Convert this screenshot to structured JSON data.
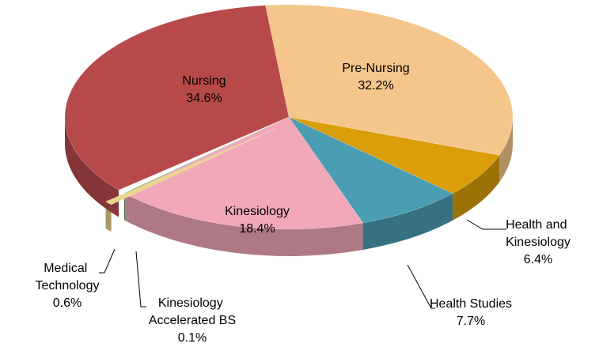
{
  "chart_data": {
    "type": "pie",
    "categories": [
      "Pre-Nursing",
      "Health and Kinesiology",
      "Health Studies",
      "Kinesiology",
      "Kinesiology Accelerated BS",
      "Medical Technology",
      "Nursing"
    ],
    "values": [
      32.2,
      6.4,
      7.7,
      18.4,
      0.1,
      0.6,
      34.6
    ],
    "value_labels": [
      "32.2%",
      "6.4%",
      "7.7%",
      "18.4%",
      "0.1%",
      "0.6%",
      "34.6%"
    ],
    "colors": [
      "#f5c68c",
      "#d99e0a",
      "#4b9db3",
      "#f2a8b8",
      "#4e9a49",
      "#e9d58c",
      "#b8494a"
    ]
  }
}
